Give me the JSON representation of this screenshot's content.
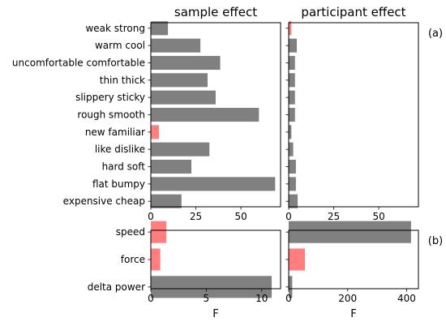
{
  "chart_data": [
    {
      "type": "bar",
      "orientation": "horizontal",
      "title": "sample effect",
      "panel_tag": "",
      "xlabel": "",
      "xlim": [
        0,
        72
      ],
      "xticks": [
        0,
        25,
        50
      ],
      "categories": [
        "weak strong",
        "warm cool",
        "uncomfortable comfortable",
        "thin thick",
        "slippery sticky",
        "rough smooth",
        "new familiar",
        "like dislike",
        "hard soft",
        "flat bumpy",
        "expensive cheap"
      ],
      "values": [
        9.5,
        27.5,
        38.5,
        31.5,
        36,
        60,
        4.5,
        32.5,
        22.5,
        69,
        17
      ],
      "colors": [
        "#808080",
        "#808080",
        "#808080",
        "#808080",
        "#808080",
        "#808080",
        "#ff7f7f",
        "#808080",
        "#808080",
        "#808080",
        "#808080"
      ]
    },
    {
      "type": "bar",
      "orientation": "horizontal",
      "title": "participant effect",
      "panel_tag": "(a)",
      "xlabel": "",
      "xlim": [
        0,
        72
      ],
      "xticks": [
        0,
        25,
        50
      ],
      "categories": [
        "weak strong",
        "warm cool",
        "uncomfortable comfortable",
        "thin thick",
        "slippery sticky",
        "rough smooth",
        "new familiar",
        "like dislike",
        "hard soft",
        "flat bumpy",
        "expensive cheap"
      ],
      "values": [
        1.5,
        4.5,
        3.5,
        3.5,
        3.5,
        3.5,
        1.5,
        2.5,
        4,
        4,
        5
      ],
      "colors": [
        "#ff7f7f",
        "#808080",
        "#808080",
        "#808080",
        "#808080",
        "#808080",
        "#808080",
        "#808080",
        "#808080",
        "#808080",
        "#808080"
      ]
    },
    {
      "type": "bar",
      "orientation": "horizontal",
      "title": "",
      "panel_tag": "",
      "xlabel": "F",
      "xlim": [
        0,
        11.7
      ],
      "xticks": [
        0,
        5,
        10
      ],
      "categories": [
        "speed",
        "force",
        "delta power"
      ],
      "values": [
        1.4,
        0.85,
        10.9
      ],
      "colors": [
        "#ff7f7f",
        "#ff7f7f",
        "#808080"
      ]
    },
    {
      "type": "bar",
      "orientation": "horizontal",
      "title": "",
      "panel_tag": "(b)",
      "xlabel": "F",
      "xlim": [
        0,
        440
      ],
      "xticks": [
        0,
        200,
        400
      ],
      "categories": [
        "speed",
        "force",
        "delta power"
      ],
      "values": [
        415,
        55,
        12
      ],
      "colors": [
        "#808080",
        "#ff7f7f",
        "#808080"
      ]
    }
  ]
}
